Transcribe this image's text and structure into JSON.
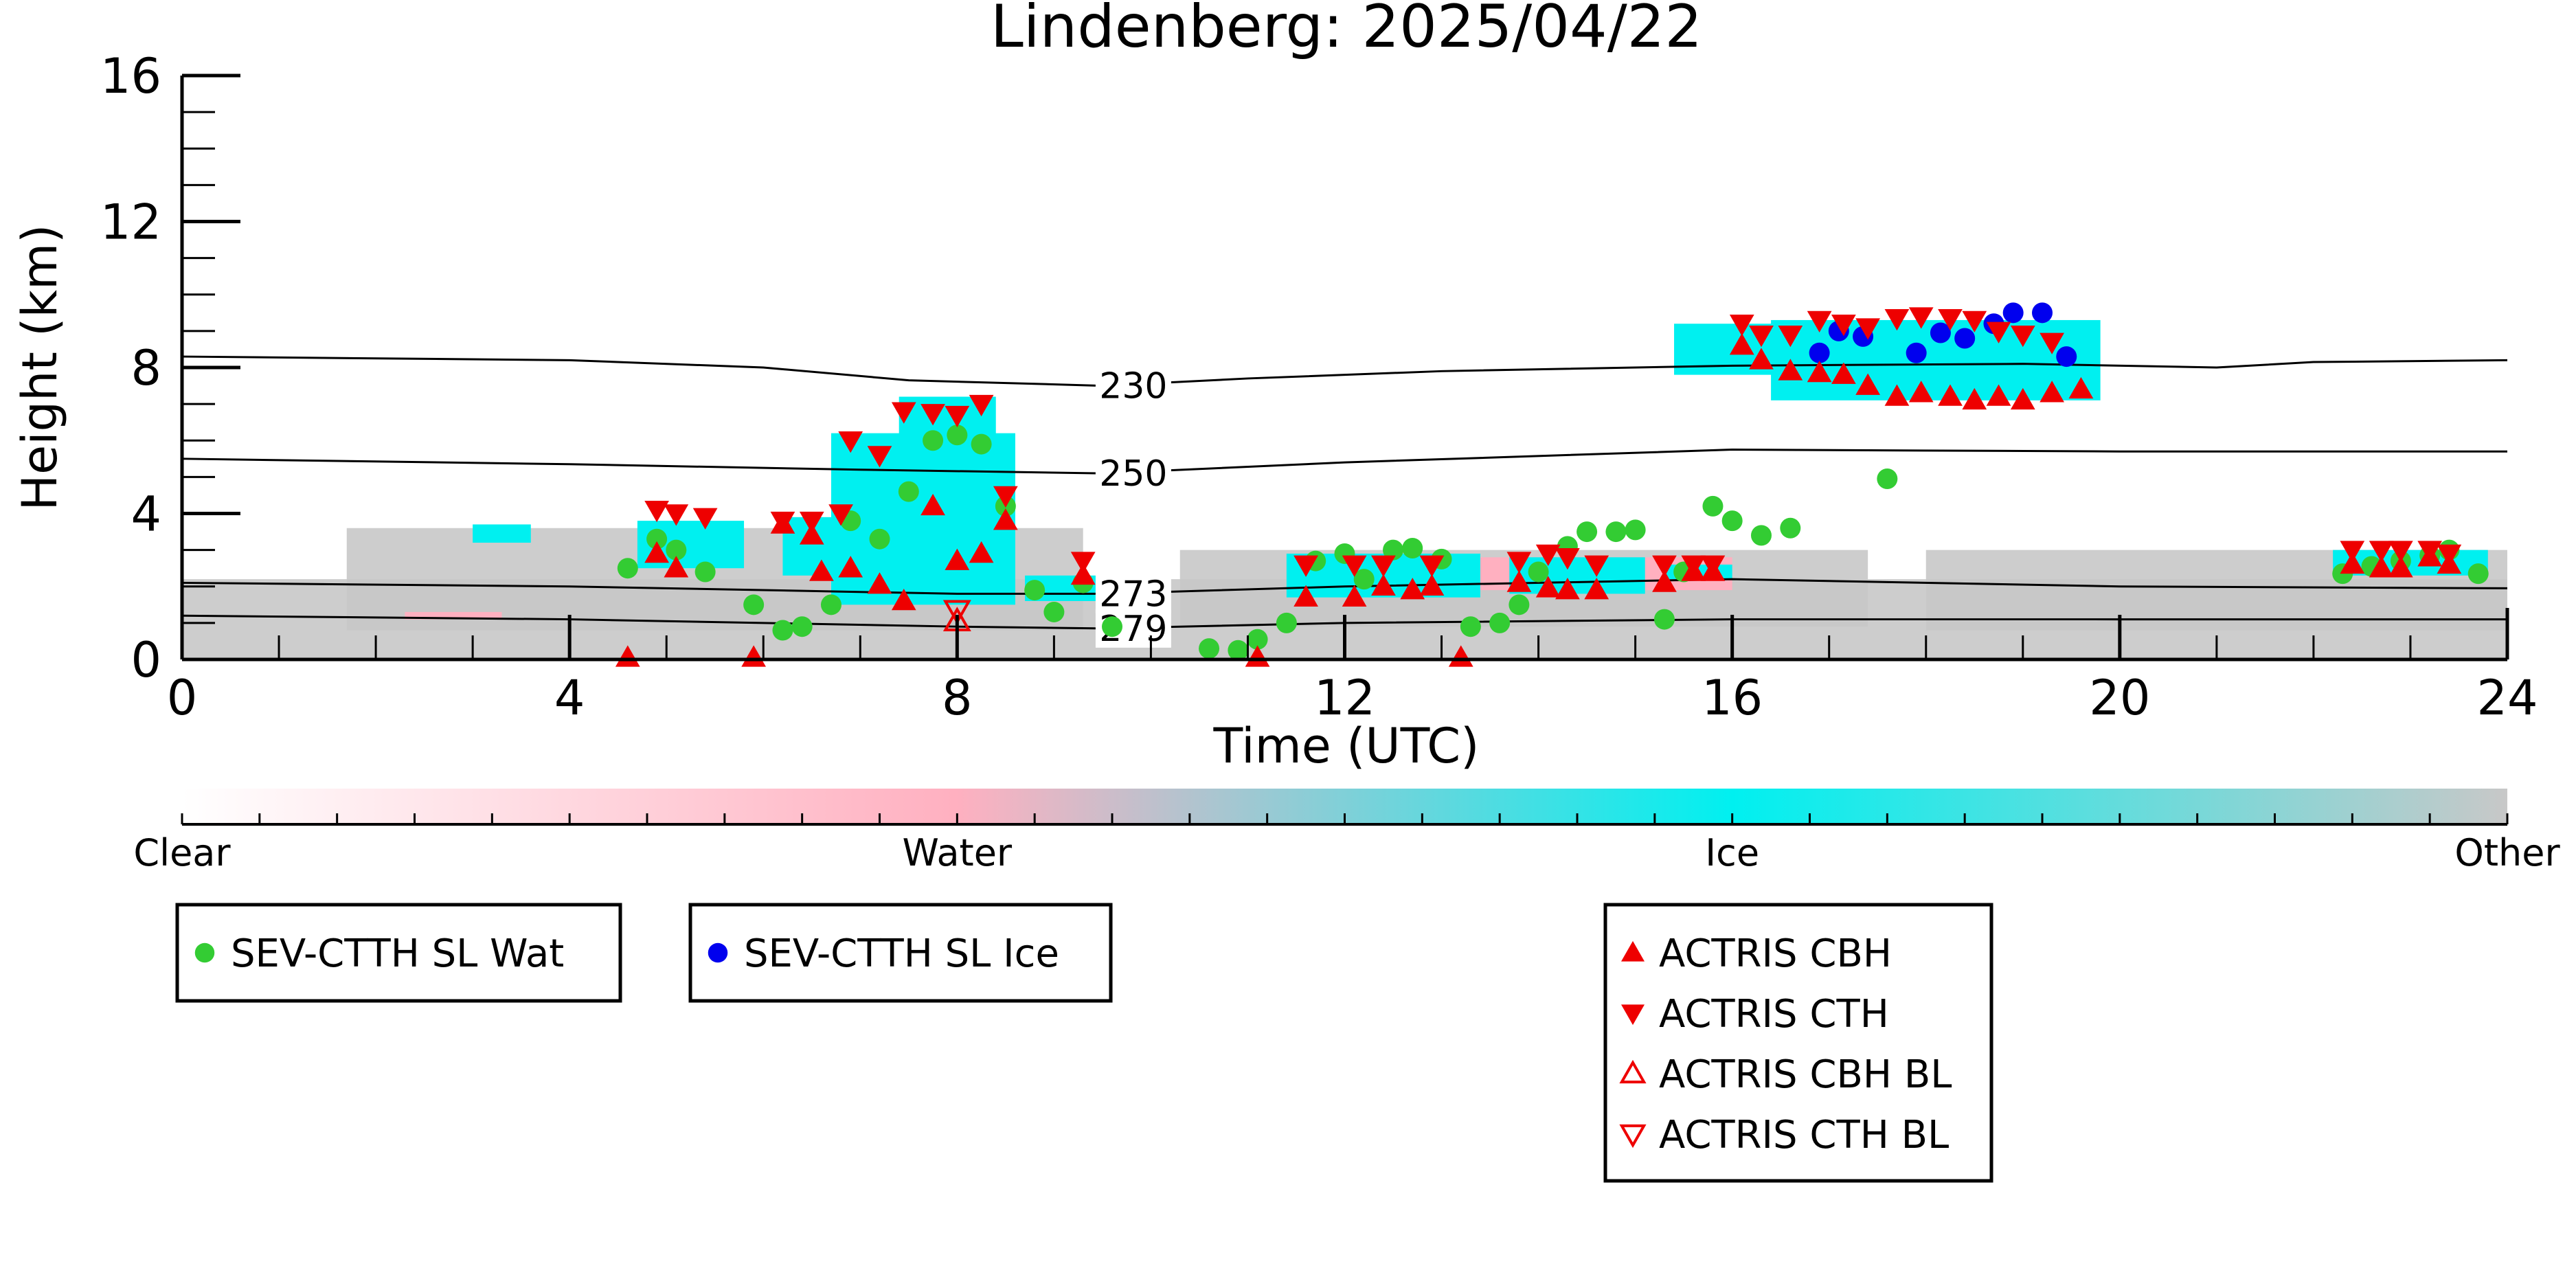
{
  "chart_data": {
    "type": "scatter",
    "title": "Lindenberg: 2025/04/22",
    "xlabel": "Time (UTC)",
    "ylabel": "Height (km)",
    "xlim": [
      0,
      24
    ],
    "ylim": [
      0,
      16
    ],
    "xticks": [
      0,
      4,
      8,
      12,
      16,
      20,
      24
    ],
    "yticks": [
      0,
      4,
      8,
      12,
      16
    ],
    "colors": {
      "sev_water": "#33cc33",
      "sev_ice": "#0000ee",
      "actris": "#ee0000",
      "ice_cloud": "#00f0f0",
      "water_cloud": "#ffb0c0",
      "other": "#c8c8c8",
      "clear": "#ffffff"
    },
    "isotherms": [
      {
        "label": "230",
        "points": [
          [
            0,
            8.3
          ],
          [
            4,
            8.2
          ],
          [
            6,
            8.0
          ],
          [
            7.5,
            7.65
          ],
          [
            9.5,
            7.5
          ],
          [
            11,
            7.7
          ],
          [
            13,
            7.9
          ],
          [
            16,
            8.05
          ],
          [
            19,
            8.1
          ],
          [
            21,
            8.0
          ],
          [
            22,
            8.15
          ],
          [
            24,
            8.2
          ]
        ],
        "label_x": 9.5
      },
      {
        "label": "250",
        "points": [
          [
            0,
            5.5
          ],
          [
            4,
            5.35
          ],
          [
            7,
            5.2
          ],
          [
            9.5,
            5.1
          ],
          [
            12,
            5.4
          ],
          [
            16,
            5.75
          ],
          [
            20,
            5.7
          ],
          [
            24,
            5.7
          ]
        ],
        "label_x": 9.5
      },
      {
        "label": "273",
        "points": [
          [
            0,
            2.1
          ],
          [
            4,
            2.0
          ],
          [
            8,
            1.8
          ],
          [
            9.5,
            1.8
          ],
          [
            12,
            2.0
          ],
          [
            16,
            2.2
          ],
          [
            20,
            2.0
          ],
          [
            24,
            1.95
          ]
        ],
        "label_x": 9.5
      },
      {
        "label": "279",
        "points": [
          [
            0,
            1.2
          ],
          [
            4,
            1.1
          ],
          [
            8,
            0.9
          ],
          [
            9.5,
            0.85
          ],
          [
            12,
            1.0
          ],
          [
            16,
            1.1
          ],
          [
            20,
            1.1
          ],
          [
            24,
            1.1
          ]
        ],
        "label_x": 9.5
      }
    ],
    "cloud_regions": [
      {
        "class": "other",
        "x": [
          0,
          24
        ],
        "y": [
          0,
          2.2
        ]
      },
      {
        "class": "other",
        "x": [
          1.7,
          9.3
        ],
        "y": [
          0.8,
          3.6
        ]
      },
      {
        "class": "other",
        "x": [
          10.3,
          17.4
        ],
        "y": [
          0.9,
          3.0
        ]
      },
      {
        "class": "other",
        "x": [
          18.0,
          24
        ],
        "y": [
          0.8,
          3.0
        ]
      },
      {
        "class": "water",
        "x": [
          2.3,
          3.3
        ],
        "y": [
          1.1,
          1.3
        ]
      },
      {
        "class": "water",
        "x": [
          11.5,
          16.0
        ],
        "y": [
          1.9,
          2.8
        ]
      },
      {
        "class": "water",
        "x": [
          22.2,
          23.8
        ],
        "y": [
          2.3,
          3.0
        ]
      },
      {
        "class": "ice",
        "x": [
          3.0,
          3.6
        ],
        "y": [
          3.2,
          3.7
        ]
      },
      {
        "class": "ice",
        "x": [
          4.7,
          5.8
        ],
        "y": [
          2.5,
          3.8
        ]
      },
      {
        "class": "ice",
        "x": [
          6.2,
          7.0
        ],
        "y": [
          2.3,
          3.9
        ]
      },
      {
        "class": "ice",
        "x": [
          6.7,
          8.6
        ],
        "y": [
          1.5,
          6.2
        ]
      },
      {
        "class": "ice",
        "x": [
          7.4,
          8.4
        ],
        "y": [
          3.5,
          7.2
        ]
      },
      {
        "class": "ice",
        "x": [
          8.7,
          9.6
        ],
        "y": [
          1.6,
          2.3
        ]
      },
      {
        "class": "ice",
        "x": [
          11.4,
          13.4
        ],
        "y": [
          1.7,
          2.9
        ]
      },
      {
        "class": "ice",
        "x": [
          13.7,
          15.1
        ],
        "y": [
          1.8,
          2.8
        ]
      },
      {
        "class": "ice",
        "x": [
          15.3,
          16.0
        ],
        "y": [
          2.2,
          2.6
        ]
      },
      {
        "class": "ice",
        "x": [
          15.4,
          17.3
        ],
        "y": [
          7.8,
          9.2
        ]
      },
      {
        "class": "ice",
        "x": [
          16.4,
          19.8
        ],
        "y": [
          7.1,
          9.3
        ]
      },
      {
        "class": "ice",
        "x": [
          22.2,
          23.8
        ],
        "y": [
          2.3,
          3.0
        ]
      }
    ],
    "series": [
      {
        "name": "SEV-CTTH SL Wat",
        "marker": "circle",
        "color": "#33cc33",
        "points": [
          [
            4.6,
            2.5
          ],
          [
            4.9,
            3.3
          ],
          [
            5.1,
            3.0
          ],
          [
            5.4,
            2.4
          ],
          [
            5.9,
            1.5
          ],
          [
            6.2,
            0.8
          ],
          [
            6.4,
            0.9
          ],
          [
            6.7,
            1.5
          ],
          [
            6.9,
            3.8
          ],
          [
            7.2,
            3.3
          ],
          [
            7.5,
            4.6
          ],
          [
            7.75,
            6.0
          ],
          [
            8.0,
            6.15
          ],
          [
            8.25,
            5.9
          ],
          [
            8.5,
            4.2
          ],
          [
            8.8,
            1.9
          ],
          [
            9.0,
            1.3
          ],
          [
            9.3,
            2.1
          ],
          [
            9.6,
            0.9
          ],
          [
            10.6,
            0.3
          ],
          [
            10.9,
            0.25
          ],
          [
            11.1,
            0.55
          ],
          [
            11.4,
            1.0
          ],
          [
            11.7,
            2.7
          ],
          [
            12.0,
            2.9
          ],
          [
            12.2,
            2.2
          ],
          [
            12.5,
            3.0
          ],
          [
            12.7,
            3.05
          ],
          [
            13.0,
            2.75
          ],
          [
            13.3,
            0.9
          ],
          [
            13.6,
            1.0
          ],
          [
            13.8,
            1.5
          ],
          [
            14.0,
            2.4
          ],
          [
            14.3,
            3.1
          ],
          [
            14.5,
            3.5
          ],
          [
            14.8,
            3.5
          ],
          [
            15.0,
            3.55
          ],
          [
            15.3,
            1.1
          ],
          [
            15.5,
            2.4
          ],
          [
            15.8,
            4.2
          ],
          [
            16.0,
            3.8
          ],
          [
            16.3,
            3.4
          ],
          [
            16.6,
            3.6
          ],
          [
            17.6,
            4.95
          ],
          [
            22.3,
            2.35
          ],
          [
            22.6,
            2.55
          ],
          [
            22.9,
            2.7
          ],
          [
            23.2,
            2.85
          ],
          [
            23.4,
            3.0
          ],
          [
            23.7,
            2.35
          ]
        ]
      },
      {
        "name": "SEV-CTTH SL Ice",
        "marker": "circle",
        "color": "#0000ee",
        "points": [
          [
            16.9,
            8.4
          ],
          [
            17.1,
            9.0
          ],
          [
            17.35,
            8.85
          ],
          [
            17.9,
            8.4
          ],
          [
            18.15,
            8.95
          ],
          [
            18.4,
            8.8
          ],
          [
            18.7,
            9.2
          ],
          [
            18.9,
            9.5
          ],
          [
            19.2,
            9.5
          ],
          [
            19.45,
            8.3
          ]
        ]
      },
      {
        "name": "ACTRIS CBH",
        "marker": "triangle-up",
        "color": "#ee0000",
        "points": [
          [
            4.6,
            0.05
          ],
          [
            4.9,
            2.9
          ],
          [
            5.1,
            2.5
          ],
          [
            5.9,
            0.05
          ],
          [
            6.2,
            3.7
          ],
          [
            6.5,
            3.4
          ],
          [
            6.6,
            2.4
          ],
          [
            6.9,
            2.5
          ],
          [
            7.2,
            2.05
          ],
          [
            7.45,
            1.6
          ],
          [
            7.75,
            4.2
          ],
          [
            8.0,
            2.7
          ],
          [
            8.25,
            2.9
          ],
          [
            8.5,
            3.8
          ],
          [
            9.3,
            2.3
          ],
          [
            11.1,
            0.05
          ],
          [
            11.6,
            1.7
          ],
          [
            12.1,
            1.7
          ],
          [
            12.4,
            2.0
          ],
          [
            12.7,
            1.9
          ],
          [
            12.9,
            2.0
          ],
          [
            13.2,
            0.05
          ],
          [
            13.8,
            2.1
          ],
          [
            14.1,
            1.95
          ],
          [
            14.3,
            1.9
          ],
          [
            14.6,
            1.9
          ],
          [
            15.3,
            2.1
          ],
          [
            15.6,
            2.4
          ],
          [
            15.8,
            2.4
          ],
          [
            16.1,
            8.6
          ],
          [
            16.3,
            8.2
          ],
          [
            16.6,
            7.9
          ],
          [
            16.9,
            7.85
          ],
          [
            17.15,
            7.8
          ],
          [
            17.4,
            7.5
          ],
          [
            17.7,
            7.2
          ],
          [
            17.95,
            7.3
          ],
          [
            18.25,
            7.2
          ],
          [
            18.5,
            7.1
          ],
          [
            18.75,
            7.2
          ],
          [
            19.0,
            7.1
          ],
          [
            19.3,
            7.3
          ],
          [
            19.6,
            7.4
          ],
          [
            22.4,
            2.6
          ],
          [
            22.7,
            2.5
          ],
          [
            22.9,
            2.5
          ],
          [
            23.2,
            2.8
          ],
          [
            23.4,
            2.6
          ]
        ]
      },
      {
        "name": "ACTRIS CTH",
        "marker": "triangle-down",
        "color": "#ee0000",
        "points": [
          [
            4.9,
            4.1
          ],
          [
            5.1,
            4.0
          ],
          [
            5.4,
            3.9
          ],
          [
            6.2,
            3.8
          ],
          [
            6.5,
            3.8
          ],
          [
            6.8,
            4.0
          ],
          [
            6.9,
            6.0
          ],
          [
            7.2,
            5.6
          ],
          [
            7.45,
            6.8
          ],
          [
            7.75,
            6.75
          ],
          [
            8.0,
            6.7
          ],
          [
            8.25,
            7.0
          ],
          [
            8.5,
            4.5
          ],
          [
            9.3,
            2.7
          ],
          [
            11.6,
            2.6
          ],
          [
            12.1,
            2.6
          ],
          [
            12.4,
            2.6
          ],
          [
            12.9,
            2.6
          ],
          [
            13.8,
            2.7
          ],
          [
            14.1,
            2.9
          ],
          [
            14.3,
            2.8
          ],
          [
            14.6,
            2.6
          ],
          [
            15.3,
            2.6
          ],
          [
            15.6,
            2.6
          ],
          [
            15.8,
            2.6
          ],
          [
            16.1,
            9.2
          ],
          [
            16.3,
            8.9
          ],
          [
            16.6,
            8.9
          ],
          [
            16.9,
            9.3
          ],
          [
            17.15,
            9.2
          ],
          [
            17.4,
            9.1
          ],
          [
            17.7,
            9.35
          ],
          [
            17.95,
            9.4
          ],
          [
            18.25,
            9.35
          ],
          [
            18.5,
            9.3
          ],
          [
            18.75,
            9.0
          ],
          [
            19.0,
            8.9
          ],
          [
            19.3,
            8.7
          ],
          [
            22.4,
            3.0
          ],
          [
            22.7,
            3.0
          ],
          [
            22.9,
            3.0
          ],
          [
            23.2,
            3.0
          ],
          [
            23.4,
            2.9
          ]
        ]
      },
      {
        "name": "ACTRIS CBH BL",
        "marker": "triangle-up-open",
        "color": "#ee0000",
        "points": [
          [
            8.0,
            1.05
          ]
        ]
      },
      {
        "name": "ACTRIS CTH BL",
        "marker": "triangle-down-open",
        "color": "#ee0000",
        "points": [
          [
            8.0,
            1.35
          ]
        ]
      }
    ],
    "colorbar": {
      "labels": [
        "Clear",
        "Water",
        "Ice",
        "Other"
      ],
      "stops": [
        {
          "pos": 0.0,
          "color": "#ffffff"
        },
        {
          "pos": 0.333,
          "color": "#ffb0c0"
        },
        {
          "pos": 0.667,
          "color": "#00f0f0"
        },
        {
          "pos": 1.0,
          "color": "#c8c8c8"
        }
      ]
    },
    "legend_groups": [
      [
        "SEV-CTTH SL Wat"
      ],
      [
        "SEV-CTTH SL Ice"
      ],
      [
        "ACTRIS CBH",
        "ACTRIS CTH",
        "ACTRIS CBH BL",
        "ACTRIS CTH BL"
      ]
    ]
  }
}
